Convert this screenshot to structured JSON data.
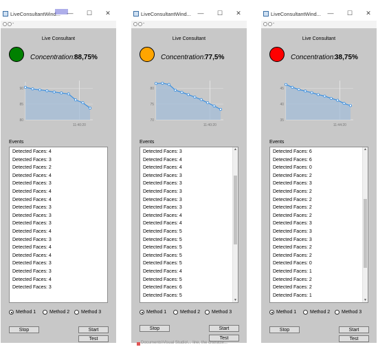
{
  "windows": [
    {
      "title": "LiveConsultantWind...",
      "controls": {
        "minimize": "—",
        "maximize": "☐",
        "close": "✕"
      },
      "nav_dash": "-",
      "heading": "Live Consultant",
      "concentration_label": "Concentration:",
      "concentration_value": "88,75%",
      "light_color": "#008000",
      "chart": {
        "type": "line",
        "y_ticks": [
          "90",
          "85",
          "80"
        ],
        "x_tick": "11:40:20",
        "values": [
          90.3,
          89.8,
          89.5,
          89.2,
          88.8,
          88.5,
          88.2,
          86.3,
          85.4,
          83.7
        ],
        "ylim": [
          80,
          92
        ]
      },
      "events_label": "Events",
      "events": [
        "Detected Faces: 4",
        "Detected Faces: 3",
        "Detected Faces: 2",
        "Detected Faces: 4",
        "Detected Faces: 3",
        "Detected Faces: 4",
        "Detected Faces: 4",
        "Detected Faces: 3",
        "Detected Faces: 3",
        "Detected Faces: 3",
        "Detected Faces: 4",
        "Detected Faces: 3",
        "Detected Faces: 4",
        "Detected Faces: 4",
        "Detected Faces: 3",
        "Detected Faces: 3",
        "Detected Faces: 4",
        "Detected Faces: 3"
      ],
      "has_scrollbar": false,
      "radios": [
        {
          "label": "Method 1",
          "checked": true
        },
        {
          "label": "Method 2",
          "checked": false
        },
        {
          "label": "Method 3",
          "checked": false
        }
      ],
      "buttons": {
        "stop": "Stop",
        "start": "Start",
        "test": "Test"
      }
    },
    {
      "title": "LiveConsultantWind...",
      "controls": {
        "minimize": "—",
        "maximize": "☐",
        "close": "✕"
      },
      "nav_dash": "-",
      "heading": "Live Consultant",
      "concentration_label": "Concentration:",
      "concentration_value": "77,5%",
      "light_color": "#FFA500",
      "chart": {
        "type": "line",
        "y_ticks": [
          "80",
          "75",
          "70"
        ],
        "x_tick": "11:40:20",
        "values": [
          81.5,
          81.6,
          81.2,
          79.4,
          78.7,
          78.0,
          77.2,
          76.4,
          75.4,
          74.4,
          73.3
        ],
        "ylim": [
          70,
          82
        ]
      },
      "events_label": "Events",
      "events": [
        "Detected Faces: 3",
        "Detected Faces: 4",
        "Detected Faces: 4",
        "Detected Faces: 3",
        "Detected Faces: 3",
        "Detected Faces: 3",
        "Detected Faces: 3",
        "Detected Faces: 3",
        "Detected Faces: 4",
        "Detected Faces: 4",
        "Detected Faces: 5",
        "Detected Faces: 5",
        "Detected Faces: 5",
        "Detected Faces: 5",
        "Detected Faces: 5",
        "Detected Faces: 4",
        "Detected Faces: 5",
        "Detected Faces: 6",
        "Detected Faces: 5"
      ],
      "has_scrollbar": true,
      "scroll_position": 0.3,
      "radios": [
        {
          "label": "Method 1",
          "checked": true
        },
        {
          "label": "Method 2",
          "checked": false
        },
        {
          "label": "Method 3",
          "checked": false
        }
      ],
      "buttons": {
        "stop": "Stop",
        "start": "Start",
        "test": "Test"
      }
    },
    {
      "title": "LiveConsultantWind...",
      "controls": {
        "minimize": "—",
        "maximize": "☐",
        "close": "✕"
      },
      "nav_dash": "-",
      "heading": "Live Consultant",
      "concentration_label": "Concentration:",
      "concentration_value": "38,75%",
      "light_color": "#FF0000",
      "chart": {
        "type": "line",
        "y_ticks": [
          "45",
          "40",
          "35"
        ],
        "x_tick": "11:44:20",
        "values": [
          46.2,
          45.3,
          44.6,
          44.1,
          43.6,
          43.0,
          42.5,
          41.8,
          41.2,
          40.2,
          39.5
        ],
        "ylim": [
          35,
          47
        ]
      },
      "events_label": "Events",
      "events": [
        "Detected Faces: 6",
        "Detected Faces: 6",
        "Detected Faces: 0",
        "Detected Faces: 2",
        "Detected Faces: 3",
        "Detected Faces: 2",
        "Detected Faces: 2",
        "Detected Faces: 2",
        "Detected Faces: 2",
        "Detected Faces: 3",
        "Detected Faces: 3",
        "Detected Faces: 3",
        "Detected Faces: 2",
        "Detected Faces: 2",
        "Detected Faces: 0",
        "Detected Faces: 1",
        "Detected Faces: 2",
        "Detected Faces: 2",
        "Detected Faces: 1"
      ],
      "has_scrollbar": true,
      "scroll_position": 0.6,
      "radios": [
        {
          "label": "Method 1",
          "checked": true
        },
        {
          "label": "Method 2",
          "checked": false
        },
        {
          "label": "Method 3",
          "checked": false
        }
      ],
      "buttons": {
        "stop": "Stop",
        "start": "Start",
        "test": "Test"
      }
    }
  ],
  "background_text": "Documents\\Visual Studio\\... line, the characte..."
}
